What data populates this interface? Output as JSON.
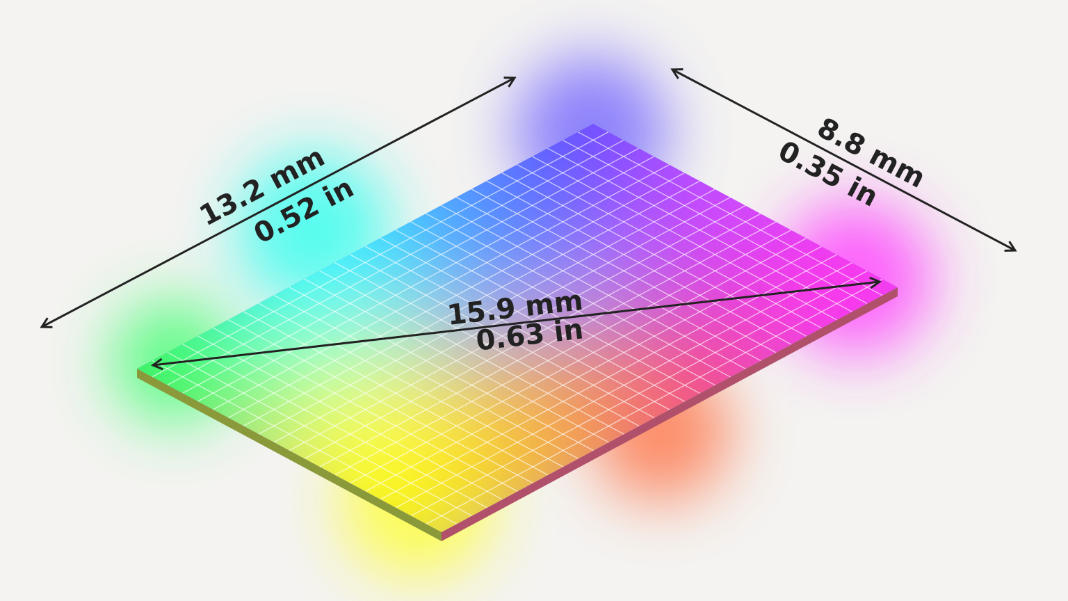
{
  "dimensions": {
    "width": {
      "mm": "13.2 mm",
      "in": "0.52 in"
    },
    "height": {
      "mm": "8.8 mm",
      "in": "0.35 in"
    },
    "diagonal": {
      "mm": "15.9 mm",
      "in": "0.63 in"
    }
  }
}
